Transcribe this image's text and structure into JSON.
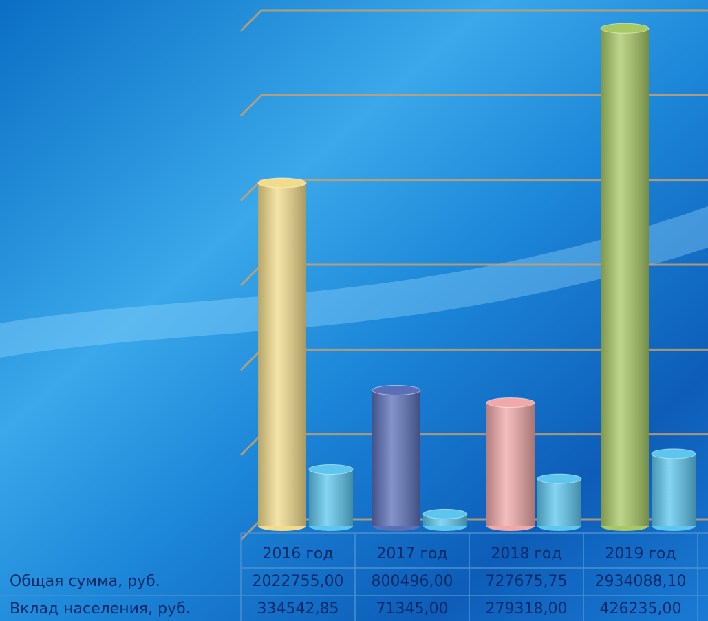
{
  "chart_data": {
    "type": "bar3d",
    "categories": [
      "2016 год",
      "2017 год",
      "2018 год",
      "2019 год"
    ],
    "series": [
      {
        "name": "Общая сумма, руб.",
        "colors": [
          "#f2dc8a",
          "#5a6fb8",
          "#f0a8a8",
          "#a8c864"
        ],
        "values": [
          2022755.0,
          800496.0,
          727675.75,
          2934088.1
        ],
        "value_labels": [
          "2022755,00",
          "800496,00",
          "727675,75",
          "2934088,10"
        ]
      },
      {
        "name": "Вклад населения, руб.",
        "color": "#5cc6ee",
        "values": [
          334542.85,
          71345.0,
          279318.0,
          426235.0
        ],
        "value_labels": [
          "334542,85",
          "71345,00",
          "279318,00",
          "426235,00"
        ]
      }
    ],
    "ylim": [
      0,
      3000000
    ],
    "yticks": [
      0,
      500000,
      1000000,
      1500000,
      2000000,
      2500000,
      3000000
    ],
    "tick_labels": false,
    "grid": true
  }
}
